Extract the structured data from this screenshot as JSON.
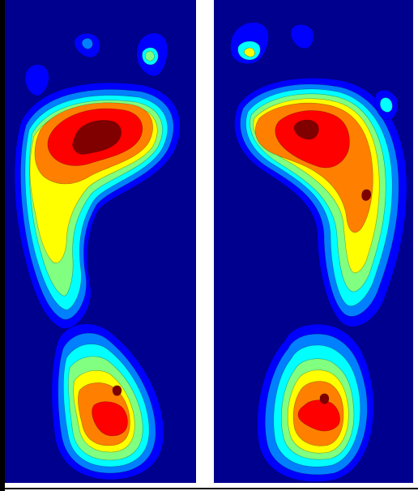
{
  "colors": {
    "background": "#00008f",
    "levels": [
      "#0000ff",
      "#0080ff",
      "#00ffff",
      "#80ff80",
      "#ffff00",
      "#ff8000",
      "#ff0000",
      "#800000"
    ]
  },
  "panels": [
    {
      "foot": "left"
    },
    {
      "foot": "right"
    }
  ]
}
